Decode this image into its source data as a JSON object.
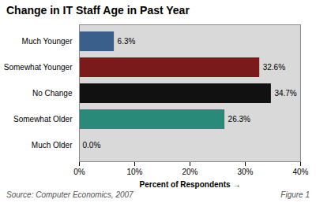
{
  "chart_data": {
    "type": "bar",
    "orientation": "horizontal",
    "title": "Change in IT Staff Age in Past Year",
    "categories": [
      "Much Younger",
      "Somewhat Younger",
      "No Change",
      "Somewhat Older",
      "Much Older"
    ],
    "values": [
      6.3,
      32.6,
      34.7,
      26.3,
      0.0
    ],
    "value_labels": [
      "6.3%",
      "32.6%",
      "34.7%",
      "26.3%",
      "0.0%"
    ],
    "data_labels": true,
    "colors": [
      "#3a5f8a",
      "#7b1a1a",
      "#111111",
      "#2a8a7a",
      "#888888"
    ],
    "xlabel": "Percent of Respondents",
    "xlim": [
      0,
      40
    ],
    "xticks": [
      {
        "value": 0,
        "label": "0%"
      },
      {
        "value": 10,
        "label": "10%"
      },
      {
        "value": 20,
        "label": "20%"
      },
      {
        "value": 30,
        "label": "30%"
      },
      {
        "value": 40,
        "label": "40%"
      }
    ],
    "grid": false,
    "annotations": [
      "Source: Computer Economics, 2007",
      "Figure 1"
    ]
  }
}
